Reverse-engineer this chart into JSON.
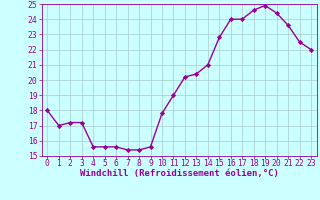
{
  "x": [
    0,
    1,
    2,
    3,
    4,
    5,
    6,
    7,
    8,
    9,
    10,
    11,
    12,
    13,
    14,
    15,
    16,
    17,
    18,
    19,
    20,
    21,
    22,
    23
  ],
  "y": [
    18,
    17,
    17.2,
    17.2,
    15.6,
    15.6,
    15.6,
    15.4,
    15.4,
    15.6,
    17.8,
    19,
    20.2,
    20.4,
    21,
    22.8,
    24,
    24,
    24.6,
    24.9,
    24.4,
    23.6,
    22.5,
    22
  ],
  "line_color": "#990099",
  "marker": "D",
  "marker_size": 2.2,
  "bg_color": "#ccffff",
  "grid_color": "#aacccc",
  "xlabel": "Windchill (Refroidissement éolien,°C)",
  "ylim": [
    15,
    25
  ],
  "xlim": [
    -0.5,
    23.5
  ],
  "yticks": [
    15,
    16,
    17,
    18,
    19,
    20,
    21,
    22,
    23,
    24,
    25
  ],
  "xticks": [
    0,
    1,
    2,
    3,
    4,
    5,
    6,
    7,
    8,
    9,
    10,
    11,
    12,
    13,
    14,
    15,
    16,
    17,
    18,
    19,
    20,
    21,
    22,
    23
  ],
  "tick_color": "#990099",
  "label_color": "#990099",
  "xlabel_fontsize": 6.5,
  "tick_fontsize": 5.8,
  "linewidth": 1.0
}
